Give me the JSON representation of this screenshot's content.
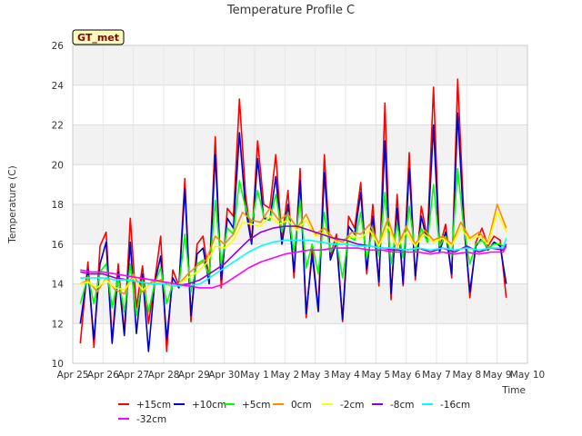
{
  "chart_data": {
    "type": "line",
    "title": "Temperature Profile C",
    "xlabel": "Time",
    "ylabel": "Temperature (C)",
    "ylim": [
      10,
      26
    ],
    "yticks": [
      10,
      12,
      14,
      16,
      18,
      20,
      22,
      24,
      26
    ],
    "xlim": [
      0,
      15
    ],
    "xtick_labels": [
      "Apr 25",
      "Apr 26",
      "Apr 27",
      "Apr 28",
      "Apr 29",
      "Apr 30",
      "May 1",
      "May 2",
      "May 3",
      "May 4",
      "May 5",
      "May 6",
      "May 7",
      "May 8",
      "May 9",
      "May 10"
    ],
    "badge": "GT_met",
    "grid": true,
    "legend_position": "bottom",
    "series": [
      {
        "name": "+15cm",
        "color": "#ff0000",
        "x": [
          0.25,
          0.5,
          0.7,
          0.9,
          1.1,
          1.3,
          1.5,
          1.7,
          1.9,
          2.1,
          2.3,
          2.5,
          2.7,
          2.9,
          3.1,
          3.3,
          3.5,
          3.7,
          3.9,
          4.1,
          4.3,
          4.5,
          4.7,
          4.9,
          5.1,
          5.3,
          5.5,
          5.7,
          5.9,
          6.1,
          6.3,
          6.5,
          6.7,
          6.9,
          7.1,
          7.3,
          7.5,
          7.7,
          7.9,
          8.1,
          8.3,
          8.5,
          8.7,
          8.9,
          9.1,
          9.3,
          9.5,
          9.7,
          9.9,
          10.1,
          10.3,
          10.5,
          10.7,
          10.9,
          11.1,
          11.3,
          11.5,
          11.7,
          11.9,
          12.1,
          12.3,
          12.5,
          12.7,
          12.9,
          13.1,
          13.3,
          13.5,
          13.7,
          13.9,
          14.1,
          14.3
        ],
        "values": [
          11.0,
          15.1,
          10.8,
          15.9,
          16.6,
          11.1,
          15.0,
          11.5,
          17.3,
          12.8,
          14.9,
          12.0,
          14.1,
          16.4,
          10.6,
          14.7,
          13.9,
          19.3,
          12.1,
          16.0,
          16.4,
          14.2,
          21.4,
          13.8,
          17.8,
          17.4,
          23.3,
          18.5,
          16.1,
          21.2,
          18.0,
          17.8,
          20.5,
          16.2,
          18.7,
          14.3,
          19.8,
          12.3,
          15.8,
          12.7,
          20.5,
          15.4,
          16.5,
          12.1,
          17.4,
          16.8,
          19.1,
          14.5,
          18.0,
          13.9,
          23.1,
          13.2,
          18.5,
          13.9,
          20.6,
          14.2,
          17.9,
          16.3,
          23.9,
          15.8,
          17.0,
          14.3,
          24.3,
          17.5,
          13.3,
          16.1,
          16.8,
          15.9,
          16.4,
          16.2,
          13.3
        ]
      },
      {
        "name": "+10cm",
        "color": "#0000cd",
        "x": [
          0.25,
          0.5,
          0.7,
          0.9,
          1.1,
          1.3,
          1.5,
          1.7,
          1.9,
          2.1,
          2.3,
          2.5,
          2.7,
          2.9,
          3.1,
          3.3,
          3.5,
          3.7,
          3.9,
          4.1,
          4.3,
          4.5,
          4.7,
          4.9,
          5.1,
          5.3,
          5.5,
          5.7,
          5.9,
          6.1,
          6.3,
          6.5,
          6.7,
          6.9,
          7.1,
          7.3,
          7.5,
          7.7,
          7.9,
          8.1,
          8.3,
          8.5,
          8.7,
          8.9,
          9.1,
          9.3,
          9.5,
          9.7,
          9.9,
          10.1,
          10.3,
          10.5,
          10.7,
          10.9,
          11.1,
          11.3,
          11.5,
          11.7,
          11.9,
          12.1,
          12.3,
          12.5,
          12.7,
          12.9,
          13.1,
          13.3,
          13.5,
          13.7,
          13.9,
          14.1,
          14.3
        ],
        "values": [
          12.0,
          14.7,
          11.2,
          15.0,
          16.1,
          11.0,
          14.6,
          11.4,
          16.1,
          11.5,
          14.5,
          10.6,
          14.0,
          15.4,
          11.2,
          14.3,
          13.8,
          18.8,
          12.4,
          15.5,
          15.8,
          14.0,
          20.5,
          14.2,
          17.3,
          16.8,
          21.6,
          17.8,
          16.0,
          20.3,
          17.3,
          17.2,
          19.4,
          16.0,
          18.0,
          14.6,
          19.2,
          12.5,
          15.5,
          12.6,
          19.6,
          15.2,
          16.1,
          12.2,
          16.9,
          16.5,
          18.6,
          14.7,
          17.4,
          14.1,
          21.2,
          13.5,
          17.8,
          14.0,
          19.8,
          14.4,
          17.4,
          16.1,
          22.0,
          15.6,
          16.6,
          14.5,
          22.6,
          17.0,
          13.6,
          15.9,
          16.3,
          15.7,
          16.1,
          15.9,
          14.0
        ]
      },
      {
        "name": "+5cm",
        "color": "#00ff00",
        "x": [
          0.25,
          0.5,
          0.7,
          0.9,
          1.1,
          1.3,
          1.5,
          1.7,
          1.9,
          2.1,
          2.3,
          2.5,
          2.7,
          2.9,
          3.1,
          3.3,
          3.5,
          3.7,
          3.9,
          4.1,
          4.3,
          4.5,
          4.7,
          4.9,
          5.1,
          5.3,
          5.5,
          5.7,
          5.9,
          6.1,
          6.3,
          6.5,
          6.7,
          6.9,
          7.1,
          7.3,
          7.5,
          7.7,
          7.9,
          8.1,
          8.3,
          8.5,
          8.7,
          8.9,
          9.1,
          9.3,
          9.5,
          9.7,
          9.9,
          10.1,
          10.3,
          10.5,
          10.7,
          10.9,
          11.1,
          11.3,
          11.5,
          11.7,
          11.9,
          12.1,
          12.3,
          12.5,
          12.7,
          12.9,
          13.1,
          13.3,
          13.5,
          13.7,
          13.9,
          14.1,
          14.3
        ],
        "values": [
          13.0,
          14.4,
          13.0,
          14.6,
          15.0,
          12.8,
          14.3,
          12.6,
          15.0,
          12.4,
          14.2,
          12.6,
          14.0,
          14.8,
          13.0,
          14.0,
          13.9,
          16.5,
          13.6,
          15.0,
          15.2,
          14.4,
          18.2,
          15.0,
          16.8,
          16.5,
          19.2,
          17.8,
          17.0,
          18.7,
          17.4,
          17.2,
          18.5,
          16.6,
          17.6,
          15.6,
          18.2,
          14.8,
          16.0,
          14.5,
          17.6,
          15.6,
          16.1,
          14.3,
          16.4,
          16.2,
          17.6,
          15.3,
          16.8,
          15.4,
          18.6,
          15.0,
          17.0,
          15.3,
          17.9,
          15.6,
          16.8,
          16.1,
          19.0,
          15.9,
          16.4,
          15.4,
          19.8,
          16.8,
          15.0,
          16.0,
          16.2,
          15.8,
          16.0,
          16.0,
          15.8
        ]
      },
      {
        "name": "0cm",
        "color": "#ff8c00",
        "x": [
          0.25,
          0.5,
          0.8,
          1.1,
          1.4,
          1.7,
          2.0,
          2.3,
          2.6,
          2.9,
          3.2,
          3.5,
          3.8,
          4.1,
          4.4,
          4.7,
          5.0,
          5.3,
          5.6,
          5.9,
          6.2,
          6.5,
          6.8,
          7.1,
          7.4,
          7.7,
          8.0,
          8.3,
          8.6,
          8.9,
          9.2,
          9.5,
          9.8,
          10.1,
          10.4,
          10.7,
          11.0,
          11.3,
          11.6,
          11.9,
          12.2,
          12.5,
          12.8,
          13.1,
          13.4,
          13.7,
          14.0,
          14.3
        ],
        "values": [
          14.0,
          14.2,
          13.6,
          14.3,
          13.7,
          13.5,
          14.5,
          13.6,
          14.1,
          14.2,
          13.9,
          14.0,
          14.5,
          14.9,
          15.2,
          16.4,
          16.0,
          16.5,
          17.6,
          17.2,
          17.1,
          17.8,
          17.2,
          17.5,
          16.8,
          17.5,
          16.5,
          16.8,
          16.3,
          16.1,
          16.6,
          16.5,
          17.0,
          16.0,
          17.3,
          15.8,
          16.9,
          16.0,
          16.7,
          16.2,
          16.4,
          16.0,
          17.1,
          16.3,
          16.6,
          16.1,
          18.0,
          16.8
        ]
      },
      {
        "name": "-2cm",
        "color": "#ffff00",
        "x": [
          0.25,
          0.5,
          0.8,
          1.1,
          1.4,
          1.7,
          2.0,
          2.3,
          2.6,
          2.9,
          3.2,
          3.5,
          3.8,
          4.1,
          4.4,
          4.7,
          5.0,
          5.3,
          5.6,
          5.9,
          6.2,
          6.5,
          6.8,
          7.1,
          7.4,
          7.7,
          8.0,
          8.3,
          8.6,
          8.9,
          9.2,
          9.5,
          9.8,
          10.1,
          10.4,
          10.7,
          11.0,
          11.3,
          11.6,
          11.9,
          12.2,
          12.5,
          12.8,
          13.1,
          13.4,
          13.7,
          14.0,
          14.3
        ],
        "values": [
          14.0,
          14.1,
          13.8,
          14.2,
          13.8,
          13.7,
          14.3,
          13.7,
          14.0,
          14.1,
          13.9,
          14.0,
          14.3,
          14.6,
          15.0,
          15.9,
          15.8,
          16.2,
          17.1,
          17.0,
          16.9,
          17.4,
          17.0,
          17.2,
          16.7,
          17.2,
          16.4,
          16.6,
          16.2,
          16.0,
          16.4,
          16.3,
          16.7,
          15.9,
          16.9,
          15.8,
          16.6,
          15.9,
          16.5,
          16.1,
          16.3,
          15.9,
          16.8,
          16.2,
          16.4,
          16.0,
          17.6,
          16.6
        ]
      },
      {
        "name": "-8cm",
        "color": "#9400d3",
        "x": [
          0.25,
          0.6,
          1.0,
          1.4,
          1.8,
          2.2,
          2.6,
          3.0,
          3.4,
          3.8,
          4.2,
          4.6,
          5.0,
          5.4,
          5.8,
          6.2,
          6.6,
          7.0,
          7.4,
          7.8,
          8.2,
          8.6,
          9.0,
          9.4,
          9.8,
          10.2,
          10.6,
          11.0,
          11.4,
          11.8,
          12.2,
          12.6,
          13.0,
          13.4,
          13.8,
          14.2,
          14.3
        ],
        "values": [
          14.6,
          14.5,
          14.5,
          14.3,
          14.2,
          14.1,
          14.0,
          14.0,
          13.9,
          14.0,
          14.2,
          14.6,
          15.0,
          15.6,
          16.2,
          16.6,
          16.8,
          16.9,
          16.9,
          16.7,
          16.5,
          16.3,
          16.2,
          16.0,
          15.9,
          15.8,
          15.7,
          15.7,
          15.8,
          15.6,
          15.8,
          15.6,
          15.9,
          15.6,
          15.8,
          15.7,
          16.0
        ]
      },
      {
        "name": "-16cm",
        "color": "#00ffff",
        "x": [
          0.25,
          0.6,
          1.0,
          1.4,
          1.8,
          2.2,
          2.6,
          3.0,
          3.4,
          3.8,
          4.2,
          4.6,
          5.0,
          5.4,
          5.8,
          6.2,
          6.6,
          7.0,
          7.4,
          7.8,
          8.2,
          8.6,
          9.0,
          9.4,
          9.8,
          10.2,
          10.6,
          11.0,
          11.4,
          11.8,
          12.2,
          12.6,
          13.0,
          13.4,
          13.8,
          14.2,
          14.3
        ],
        "values": [
          14.3,
          14.3,
          14.3,
          14.2,
          14.2,
          14.1,
          14.0,
          14.0,
          13.9,
          13.9,
          14.0,
          14.4,
          14.8,
          15.2,
          15.6,
          15.9,
          16.1,
          16.2,
          16.2,
          16.2,
          16.1,
          16.0,
          16.0,
          15.9,
          15.9,
          15.8,
          15.8,
          15.7,
          15.8,
          15.7,
          15.8,
          15.7,
          15.8,
          15.7,
          15.8,
          15.8,
          16.3
        ]
      },
      {
        "name": "-32cm",
        "color": "#ff00ff",
        "x": [
          0.25,
          0.6,
          1.0,
          1.4,
          1.8,
          2.2,
          2.6,
          3.0,
          3.4,
          3.8,
          4.2,
          4.6,
          5.0,
          5.4,
          5.8,
          6.2,
          6.6,
          7.0,
          7.4,
          7.8,
          8.2,
          8.6,
          9.0,
          9.4,
          9.8,
          10.2,
          10.6,
          11.0,
          11.4,
          11.8,
          12.2,
          12.6,
          13.0,
          13.4,
          13.8,
          14.2,
          14.3
        ],
        "values": [
          14.7,
          14.6,
          14.6,
          14.5,
          14.4,
          14.3,
          14.2,
          14.1,
          14.0,
          13.9,
          13.8,
          13.8,
          14.0,
          14.4,
          14.8,
          15.1,
          15.3,
          15.5,
          15.6,
          15.7,
          15.7,
          15.8,
          15.8,
          15.8,
          15.7,
          15.7,
          15.6,
          15.6,
          15.6,
          15.5,
          15.6,
          15.5,
          15.6,
          15.5,
          15.6,
          15.6,
          15.9
        ]
      }
    ]
  }
}
